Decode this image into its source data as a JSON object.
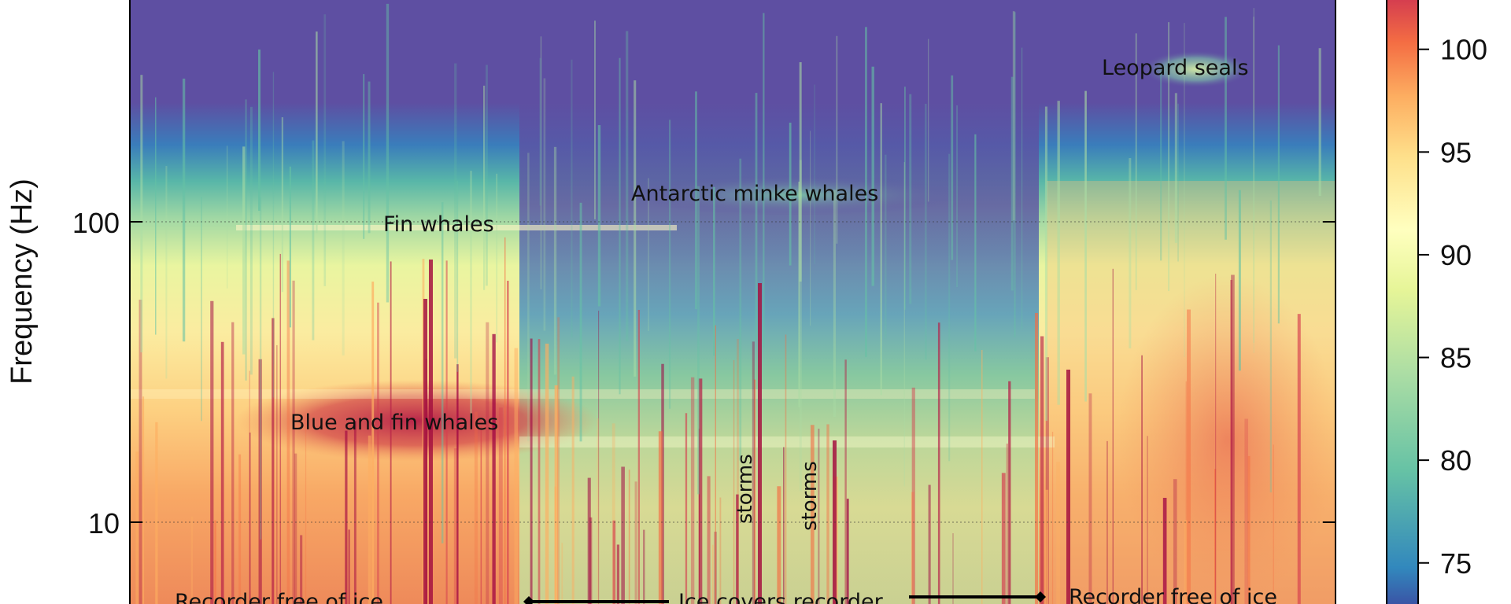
{
  "chart_data": {
    "type": "heatmap",
    "y_scale": "log",
    "ylabel": "Frequency (Hz)",
    "y_ticks": [
      {
        "value": 100,
        "label": "100"
      },
      {
        "value": 10,
        "label": "10"
      }
    ],
    "ylim_visible": [
      7.6,
      1500
    ],
    "colorbar": {
      "ticks": [
        {
          "value": 100,
          "label": "100"
        },
        {
          "value": 95,
          "label": "95"
        },
        {
          "value": 90,
          "label": "90"
        },
        {
          "value": 85,
          "label": "85"
        },
        {
          "value": 80,
          "label": "80"
        },
        {
          "value": 75,
          "label": "75"
        }
      ],
      "range_visible": [
        73,
        102.4
      ],
      "colormap": "spectral"
    },
    "annotations": [
      {
        "text": "Leopard seals",
        "frequency": 440
      },
      {
        "text": "Antarctic minke whales",
        "frequency": 121
      },
      {
        "text": "Fin whales",
        "frequency": 96
      },
      {
        "text": "Blue and fin whales",
        "frequency": 19.5
      },
      {
        "text": "storms",
        "frequency": 13.5
      },
      {
        "text": "storms",
        "frequency": 13
      },
      {
        "text": "Recorder free of ice",
        "frequency": 7.6
      },
      {
        "text": "Ice covers recorder",
        "frequency": 7.6
      },
      {
        "text": "Recorder free of ice",
        "frequency": 7.6
      }
    ],
    "grid": true
  },
  "colors": {
    "background_low": "#5e4fa2",
    "blue": "#3288bd",
    "teal": "#66c2a5",
    "green": "#abdda4",
    "yellow": "#ffffbf",
    "orange": "#fdae61",
    "red": "#d53e4f",
    "dark_red": "#9e0142"
  }
}
